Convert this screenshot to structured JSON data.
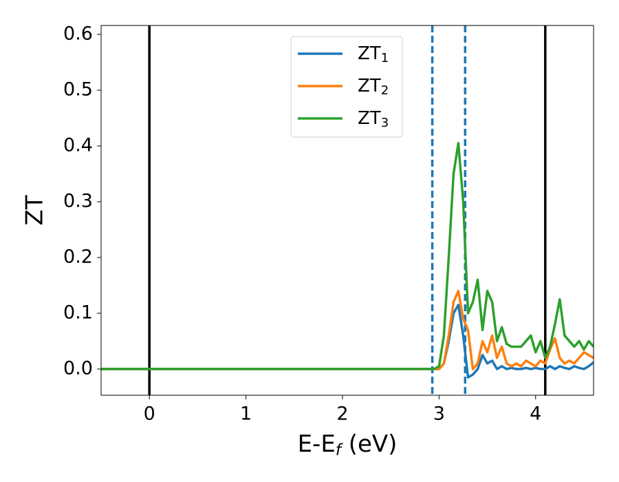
{
  "chart_data": {
    "type": "line",
    "xlabel": {
      "main": "E-E",
      "sub": "f",
      "unit": " (eV)"
    },
    "ylabel": "ZT",
    "x": [
      -0.5,
      2.9,
      2.95,
      3.0,
      3.05,
      3.1,
      3.15,
      3.2,
      3.25,
      3.3,
      3.35,
      3.4,
      3.45,
      3.5,
      3.55,
      3.6,
      3.65,
      3.7,
      3.75,
      3.8,
      3.85,
      3.9,
      3.95,
      4.0,
      4.05,
      4.1,
      4.15,
      4.2,
      4.25,
      4.3,
      4.35,
      4.4,
      4.45,
      4.5,
      4.55,
      4.6
    ],
    "series": [
      {
        "name": {
          "main": "ZT",
          "sub": "1"
        },
        "color": "#1f77b4",
        "values": [
          0,
          0,
          0,
          0,
          0.01,
          0.05,
          0.1,
          0.115,
          0.06,
          -0.015,
          -0.01,
          0,
          0.025,
          0.01,
          0.015,
          0,
          0.005,
          0,
          0.002,
          0,
          0,
          0.002,
          0,
          0.002,
          0,
          0,
          0.005,
          0,
          0.005,
          0.002,
          0,
          0.005,
          0.002,
          0,
          0.005,
          0.012
        ]
      },
      {
        "name": {
          "main": "ZT",
          "sub": "2"
        },
        "color": "#ff7f0e",
        "values": [
          0,
          0,
          0,
          0,
          0.01,
          0.06,
          0.12,
          0.14,
          0.09,
          0.07,
          0,
          0.01,
          0.05,
          0.03,
          0.06,
          0.02,
          0.04,
          0.01,
          0.005,
          0.01,
          0.005,
          0.015,
          0.01,
          0.005,
          0.015,
          0.01,
          0.035,
          0.055,
          0.02,
          0.01,
          0.015,
          0.01,
          0.02,
          0.03,
          0.025,
          0.02
        ]
      },
      {
        "name": {
          "main": "ZT",
          "sub": "3"
        },
        "color": "#2ca02c",
        "values": [
          0,
          0,
          0,
          0.005,
          0.06,
          0.2,
          0.35,
          0.405,
          0.3,
          0.1,
          0.12,
          0.16,
          0.07,
          0.14,
          0.12,
          0.05,
          0.075,
          0.045,
          0.04,
          0.04,
          0.04,
          0.05,
          0.06,
          0.03,
          0.05,
          0.02,
          0.04,
          0.08,
          0.125,
          0.06,
          0.05,
          0.04,
          0.05,
          0.035,
          0.05,
          0.04
        ]
      }
    ],
    "vlines": [
      {
        "x": 0,
        "color": "#000000",
        "style": "solid"
      },
      {
        "x": 4.1,
        "color": "#000000",
        "style": "solid"
      },
      {
        "x": 2.93,
        "color": "#1f77b4",
        "style": "dashed"
      },
      {
        "x": 3.27,
        "color": "#1f77b4",
        "style": "dashed"
      }
    ],
    "xlim": [
      -0.5,
      4.6
    ],
    "xticks": [
      0,
      1,
      2,
      3,
      4
    ],
    "ylim": [
      -0.047,
      0.616
    ],
    "yticks": [
      {
        "value": 0,
        "label": "0.0"
      },
      0.1,
      0.2,
      0.3,
      0.4,
      0.5,
      0.6
    ],
    "grid": false,
    "legend": "upper center"
  }
}
